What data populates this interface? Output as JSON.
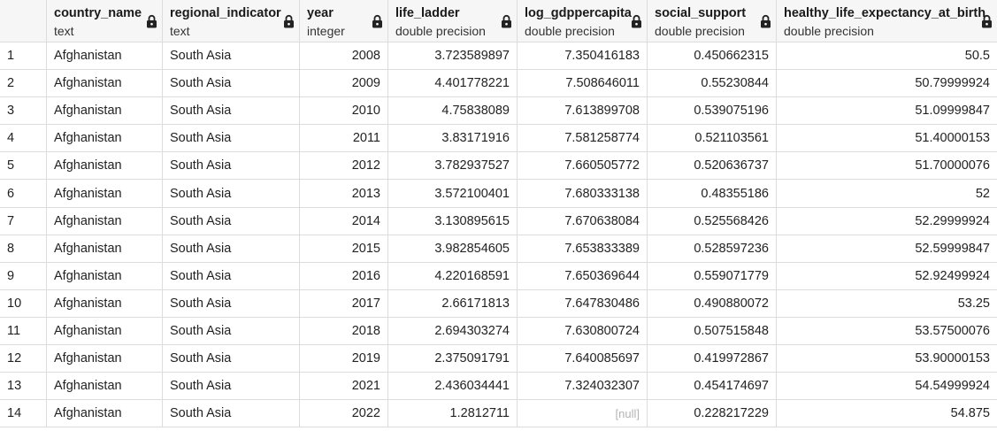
{
  "columns": [
    {
      "name": "country_name",
      "type": "text"
    },
    {
      "name": "regional_indicator",
      "type": "text"
    },
    {
      "name": "year",
      "type": "integer"
    },
    {
      "name": "life_ladder",
      "type": "double precision"
    },
    {
      "name": "log_gdppercapita",
      "type": "double precision"
    },
    {
      "name": "social_support",
      "type": "double precision"
    },
    {
      "name": "healthy_life_expectancy_at_birth",
      "type": "double precision"
    }
  ],
  "rows": [
    [
      "1",
      "Afghanistan",
      "South Asia",
      "2008",
      "3.723589897",
      "7.350416183",
      "0.450662315",
      "50.5"
    ],
    [
      "2",
      "Afghanistan",
      "South Asia",
      "2009",
      "4.401778221",
      "7.508646011",
      "0.55230844",
      "50.79999924"
    ],
    [
      "3",
      "Afghanistan",
      "South Asia",
      "2010",
      "4.75838089",
      "7.613899708",
      "0.539075196",
      "51.09999847"
    ],
    [
      "4",
      "Afghanistan",
      "South Asia",
      "2011",
      "3.83171916",
      "7.581258774",
      "0.521103561",
      "51.40000153"
    ],
    [
      "5",
      "Afghanistan",
      "South Asia",
      "2012",
      "3.782937527",
      "7.660505772",
      "0.520636737",
      "51.70000076"
    ],
    [
      "6",
      "Afghanistan",
      "South Asia",
      "2013",
      "3.572100401",
      "7.680333138",
      "0.48355186",
      "52"
    ],
    [
      "7",
      "Afghanistan",
      "South Asia",
      "2014",
      "3.130895615",
      "7.670638084",
      "0.525568426",
      "52.29999924"
    ],
    [
      "8",
      "Afghanistan",
      "South Asia",
      "2015",
      "3.982854605",
      "7.653833389",
      "0.528597236",
      "52.59999847"
    ],
    [
      "9",
      "Afghanistan",
      "South Asia",
      "2016",
      "4.220168591",
      "7.650369644",
      "0.559071779",
      "52.92499924"
    ],
    [
      "10",
      "Afghanistan",
      "South Asia",
      "2017",
      "2.66171813",
      "7.647830486",
      "0.490880072",
      "53.25"
    ],
    [
      "11",
      "Afghanistan",
      "South Asia",
      "2018",
      "2.694303274",
      "7.630800724",
      "0.507515848",
      "53.57500076"
    ],
    [
      "12",
      "Afghanistan",
      "South Asia",
      "2019",
      "2.375091791",
      "7.640085697",
      "0.419972867",
      "53.90000153"
    ],
    [
      "13",
      "Afghanistan",
      "South Asia",
      "2021",
      "2.436034441",
      "7.324032307",
      "0.454174697",
      "54.54999924"
    ],
    [
      "14",
      "Afghanistan",
      "South Asia",
      "2022",
      "1.2812711",
      "[null]",
      "0.228217229",
      "54.875"
    ]
  ],
  "icons": {
    "column_lock": "lock-icon"
  },
  "colors": {
    "header_bg": "#f6f6f6",
    "grid_line": "#dcdcdc",
    "null_text": "#b3b3b3"
  }
}
